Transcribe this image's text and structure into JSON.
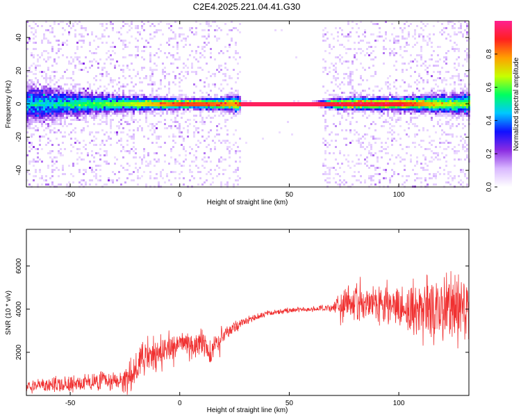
{
  "figure": {
    "title": "C2E4.2025.221.04.41.G30"
  },
  "chart_data": [
    {
      "type": "heatmap",
      "xlabel": "Height of straight line (km)",
      "ylabel": "Frequency (Hz)",
      "xlim": [
        -70,
        132
      ],
      "ylim": [
        -50,
        50
      ],
      "x_ticks": [
        -50,
        0,
        50,
        100
      ],
      "y_ticks": [
        -40,
        -20,
        0,
        20,
        40
      ],
      "grid": false,
      "colorbar": {
        "label": "Normalized spectral amplitude",
        "ticks": [
          0.0,
          0.2,
          0.4,
          0.6,
          0.8
        ],
        "range": [
          0,
          1
        ],
        "colormap": [
          "#ffffff",
          "#d9b8ff",
          "#8a2be2",
          "#1010ff",
          "#00c8ff",
          "#00ff60",
          "#c8ff00",
          "#ffa000",
          "#ff2020",
          "#ff2090"
        ]
      },
      "spread_profile": {
        "note_x": [
          -70,
          -60,
          -50,
          -40,
          -30,
          -20,
          -10,
          0,
          10,
          20,
          27,
          28,
          40,
          60,
          72,
          80,
          100,
          110,
          120,
          132
        ],
        "halfwidth_hz": [
          9,
          8,
          6,
          5,
          4,
          3.5,
          3,
          2.5,
          2.5,
          3,
          4,
          1,
          0.8,
          0.8,
          2.5,
          3,
          3,
          3.5,
          4.5,
          5
        ],
        "peak_amplitude": [
          0.45,
          0.45,
          0.5,
          0.55,
          0.6,
          0.65,
          0.75,
          0.85,
          0.85,
          0.8,
          0.75,
          0.95,
          0.95,
          0.95,
          0.9,
          0.9,
          0.9,
          0.8,
          0.65,
          0.6
        ]
      }
    },
    {
      "type": "line",
      "xlabel": "Height of straight line (km)",
      "ylabel": "SNR (10 * v/v)",
      "xlim": [
        -70,
        132
      ],
      "ylim": [
        0,
        7700
      ],
      "x_ticks": [
        -50,
        0,
        50,
        100
      ],
      "y_ticks": [
        2000,
        4000,
        6000
      ],
      "grid": false,
      "series": [
        {
          "color": "#f03030",
          "envelope": {
            "x": [
              -70,
              -60,
              -50,
              -40,
              -30,
              -22,
              -18,
              -10,
              0,
              10,
              14,
              20,
              28,
              40,
              50,
              60,
              70,
              73,
              90,
              100,
              110,
              120,
              132
            ],
            "mean": [
              400,
              500,
              550,
              600,
              650,
              800,
              1600,
              2100,
              2300,
              2500,
              1900,
              2800,
              3400,
              3800,
              3950,
              4000,
              4050,
              4300,
              4200,
              4100,
              4000,
              4100,
              3900
            ],
            "jitter": [
              350,
              400,
              450,
              500,
              550,
              900,
              1100,
              900,
              700,
              800,
              700,
              500,
              250,
              150,
              150,
              150,
              200,
              900,
              1100,
              1300,
              1500,
              1800,
              2000
            ]
          }
        }
      ]
    }
  ]
}
